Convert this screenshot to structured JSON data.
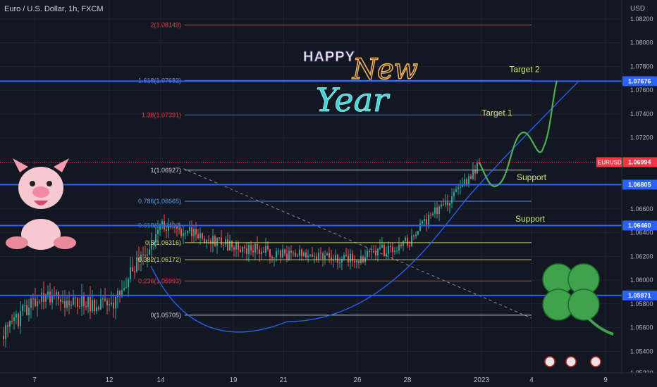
{
  "header": {
    "symbol": "Euro / U.S. Dollar, 1h, FXCM",
    "currency": "USD"
  },
  "greeting": {
    "line1": "HAPPY",
    "line2": "New",
    "line3": "Year"
  },
  "colors": {
    "background": "#131722",
    "candle_up": "#26a69a",
    "candle_down": "#ef5350",
    "level_line": "#2962ff",
    "curve": "#2962ff",
    "projection": "#4caf50",
    "annotation_text": "#c6e87a",
    "fib_red": "#f23645",
    "fib_neutral": "#d1d4dc"
  },
  "chart_data": {
    "type": "candlestick",
    "y_range": [
      1.051,
      1.0836
    ],
    "y_ticks": [
      "1.08200",
      "1.08000",
      "1.07800",
      "1.07600",
      "1.07400",
      "1.07200",
      "1.06800",
      "1.06600",
      "1.06400",
      "1.06200",
      "1.06000",
      "1.05800",
      "1.05600",
      "1.05400",
      "1.05220"
    ],
    "x_ticks": [
      "7",
      "12",
      "14",
      "19",
      "21",
      "26",
      "28",
      "2023",
      "4",
      "9"
    ],
    "fib_levels": [
      {
        "label": "2(1.08149)",
        "value": 1.08149,
        "color": "#f23645"
      },
      {
        "label": "1.618(1.07682)",
        "value": 1.07682,
        "color": "#5b9cf6"
      },
      {
        "label": "1.38(1.07391)",
        "value": 1.07391,
        "color": "#f23645"
      },
      {
        "label": "1(1.06927)",
        "value": 1.06927,
        "color": "#d1d4dc"
      },
      {
        "label": "0.786(1.06665)",
        "value": 1.06665,
        "color": "#5b9cf6"
      },
      {
        "label": "0.618(1.06460)",
        "value": 1.0646,
        "color": "#26a69a"
      },
      {
        "label": "0.5(1.06316)",
        "value": 1.06316,
        "color": "#d4e157"
      },
      {
        "label": "0.382(1.06172)",
        "value": 1.06172,
        "color": "#d4e157"
      },
      {
        "label": "0.236(1.05993)",
        "value": 1.05993,
        "color": "#f23645"
      },
      {
        "label": "0(1.05705)",
        "value": 1.05705,
        "color": "#d1d4dc"
      }
    ],
    "horizontal_levels": [
      {
        "value": 1.07676,
        "label": "1.07676"
      },
      {
        "value": 1.06805,
        "label": "1.06805"
      },
      {
        "value": 1.0646,
        "label": "1.06460"
      },
      {
        "value": 1.05871,
        "label": "1.05871"
      }
    ],
    "current_price": {
      "symbol": "EURUSD",
      "value": 1.06994,
      "label": "1.06994"
    },
    "annotations": [
      {
        "text": "Target 2",
        "value": 1.0773
      },
      {
        "text": "Target 1",
        "value": 1.0736
      },
      {
        "text": "Support",
        "value": 1.0682
      },
      {
        "text": "Support",
        "value": 1.0647
      }
    ],
    "anchors": [
      {
        "x_tick": "7",
        "value": 1.0585
      },
      {
        "x_tick": "12",
        "value": 1.0578
      },
      {
        "x_tick": "14",
        "value": 1.0647
      },
      {
        "x_tick": "19",
        "value": 1.0628
      },
      {
        "x_tick": "21",
        "value": 1.0622
      },
      {
        "x_tick": "26",
        "value": 1.0618
      },
      {
        "x_tick": "28",
        "value": 1.0632
      },
      {
        "x_tick": "2023",
        "value": 1.0699
      }
    ],
    "projection_path": [
      {
        "x": "2023",
        "value": 1.0699
      },
      {
        "x": "4",
        "value": 1.0681
      },
      {
        "x": "4",
        "value": 1.0724
      },
      {
        "x": "4",
        "value": 1.0712
      },
      {
        "x": "4",
        "value": 1.0768
      }
    ],
    "curve_points": [
      {
        "x_tick": "14",
        "value": 1.0612
      },
      {
        "x_tick": "21",
        "value": 1.0565
      },
      {
        "x_tick": "2023",
        "value": 1.0652
      },
      {
        "x_tick": "4",
        "value": 1.0767
      }
    ],
    "dashed_trendline": [
      {
        "x_tick": "14",
        "value": 1.0694
      },
      {
        "x_tick": "4",
        "value": 1.0568
      }
    ]
  }
}
